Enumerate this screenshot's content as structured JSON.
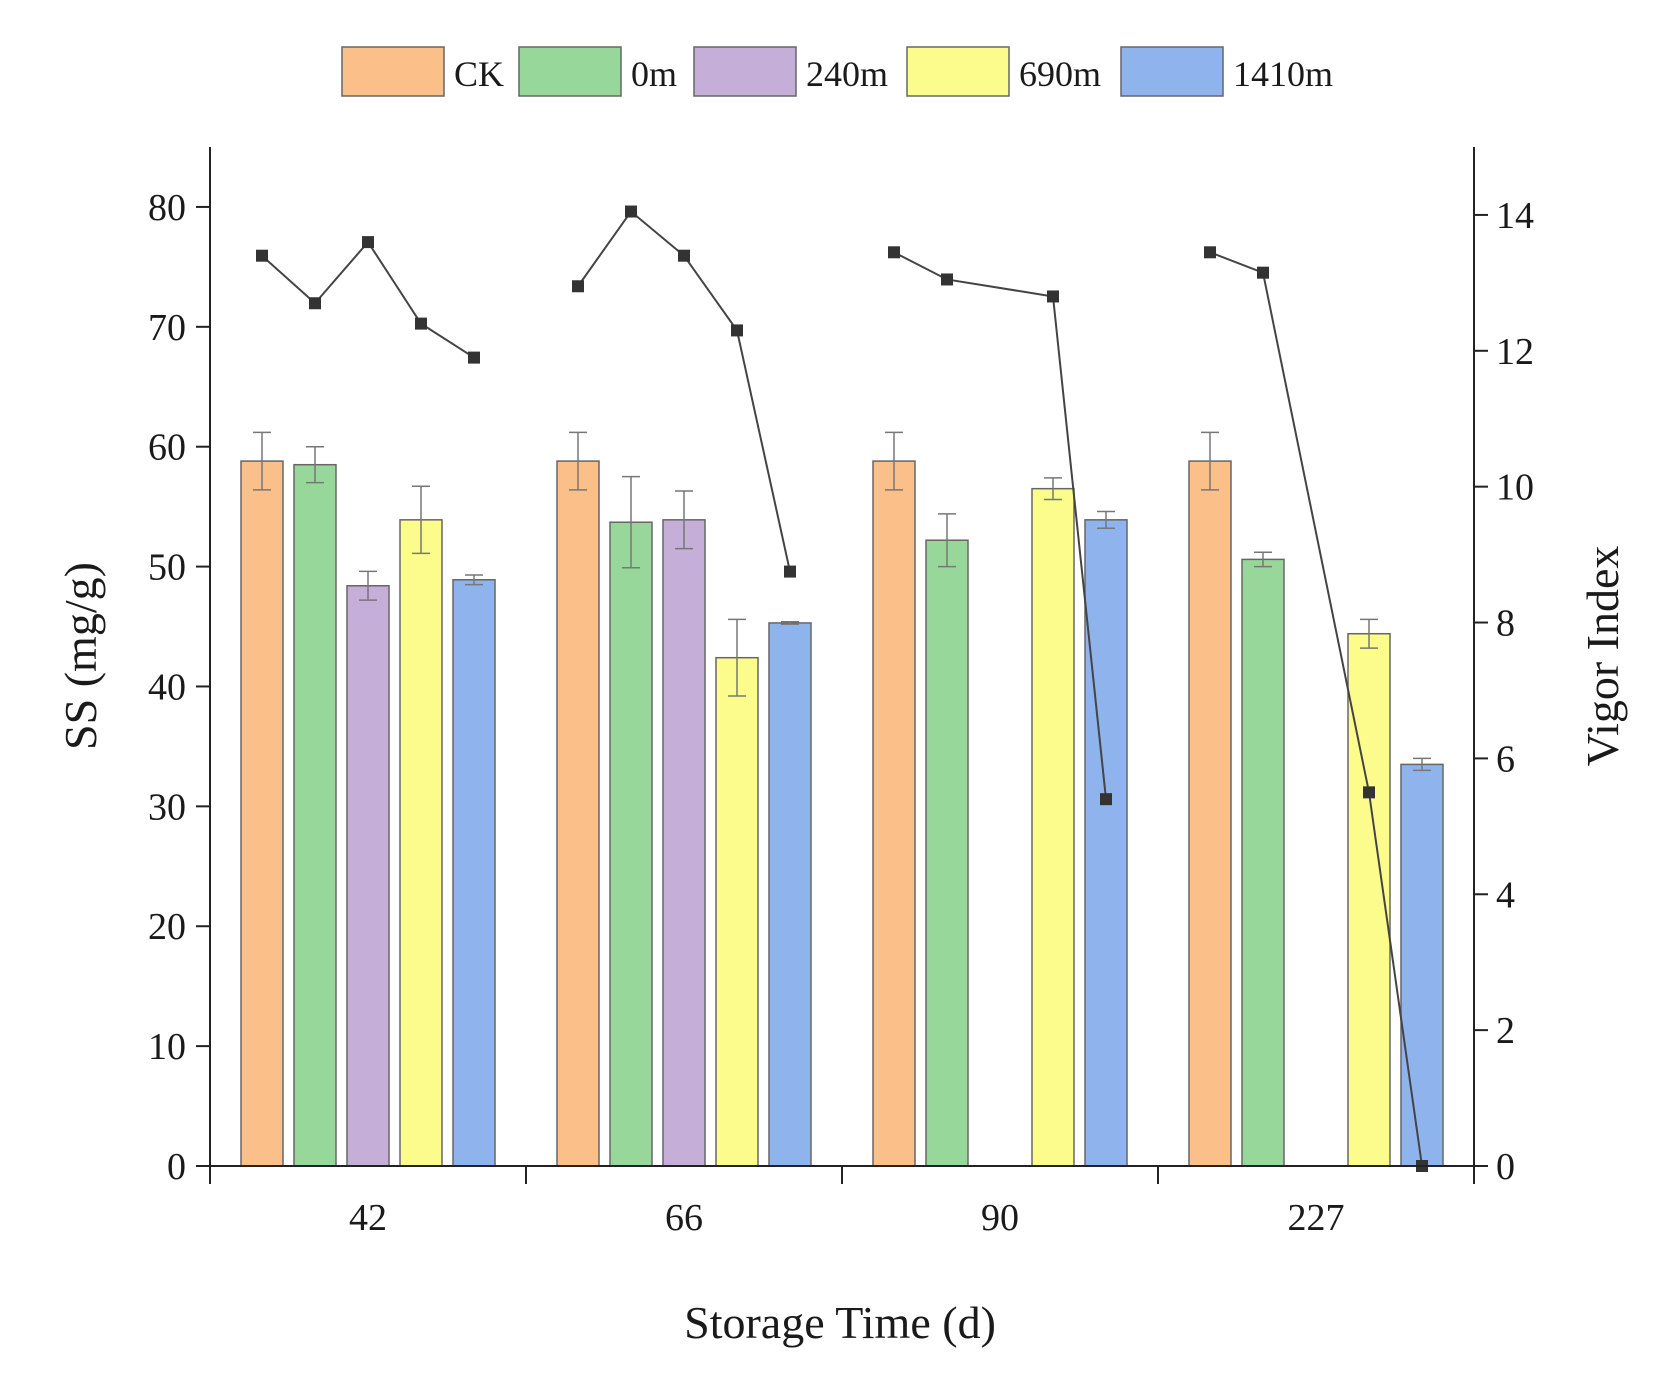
{
  "chart_data": {
    "type": "bar",
    "categories": [
      "42",
      "66",
      "90",
      "227"
    ],
    "xlabel": "Storage Time (d)",
    "ylabel": "SS (mg/g)",
    "ylim": [
      0,
      85
    ],
    "yticks": [
      0,
      10,
      20,
      30,
      40,
      50,
      60,
      70,
      80
    ],
    "y2label": "Vigor Index",
    "y2lim": [
      0,
      15
    ],
    "y2ticks": [
      0,
      2,
      4,
      6,
      8,
      10,
      12,
      14
    ],
    "grid": false,
    "legend_position": "top",
    "series": [
      {
        "name": "CK",
        "color": "#fbbf8a",
        "values": [
          58.8,
          58.8,
          58.8,
          58.8
        ],
        "errors": [
          2.4,
          2.4,
          2.4,
          2.4
        ]
      },
      {
        "name": "0m",
        "color": "#97d89a",
        "values": [
          58.5,
          53.7,
          52.2,
          50.6
        ],
        "errors": [
          1.5,
          3.8,
          2.2,
          0.6
        ]
      },
      {
        "name": "240m",
        "color": "#c5aed8",
        "values": [
          48.4,
          53.9,
          null,
          null
        ],
        "errors": [
          1.2,
          2.4,
          null,
          null
        ]
      },
      {
        "name": "690m",
        "color": "#fcfc8c",
        "values": [
          53.9,
          42.4,
          56.5,
          44.4
        ],
        "errors": [
          2.8,
          3.2,
          0.9,
          1.2
        ]
      },
      {
        "name": "1410m",
        "color": "#8fb3ec",
        "values": [
          48.9,
          45.3,
          53.9,
          33.5
        ],
        "errors": [
          0.4,
          0.1,
          0.7,
          0.5
        ]
      }
    ],
    "vigor_index": {
      "name": "Vigor Index",
      "values": [
        [
          13.4,
          12.7,
          13.6,
          12.4,
          11.9
        ],
        [
          12.95,
          14.05,
          13.4,
          12.3,
          8.75
        ],
        [
          13.45,
          13.05,
          null,
          12.8,
          5.4
        ],
        [
          13.45,
          13.15,
          null,
          5.5,
          0
        ]
      ]
    }
  }
}
